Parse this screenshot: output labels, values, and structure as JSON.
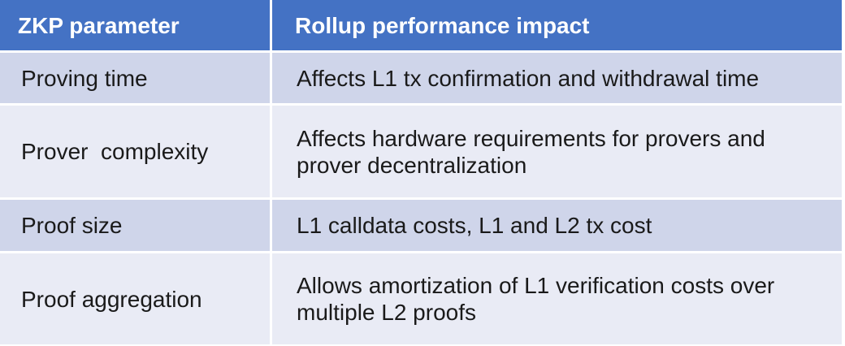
{
  "table": {
    "headers": [
      "ZKP parameter",
      "Rollup performance impact"
    ],
    "rows": [
      {
        "parameter": "Proving time",
        "impact_lines": [
          "Affects L1 tx confirmation and withdrawal time"
        ]
      },
      {
        "parameter": "Prover  complexity",
        "impact_lines": [
          "Affects hardware requirements for provers and",
          "prover decentralization"
        ]
      },
      {
        "parameter": "Proof size",
        "impact_lines": [
          "L1 calldata costs, L1 and L2 tx cost"
        ]
      },
      {
        "parameter": "Proof aggregation",
        "impact_lines": [
          "Allows amortization of L1 verification costs over",
          "multiple L2 proofs"
        ]
      }
    ]
  },
  "colors": {
    "header_bg": "#4472c4",
    "row_dark": "#cfd5ea",
    "row_light": "#e9ebf5"
  }
}
